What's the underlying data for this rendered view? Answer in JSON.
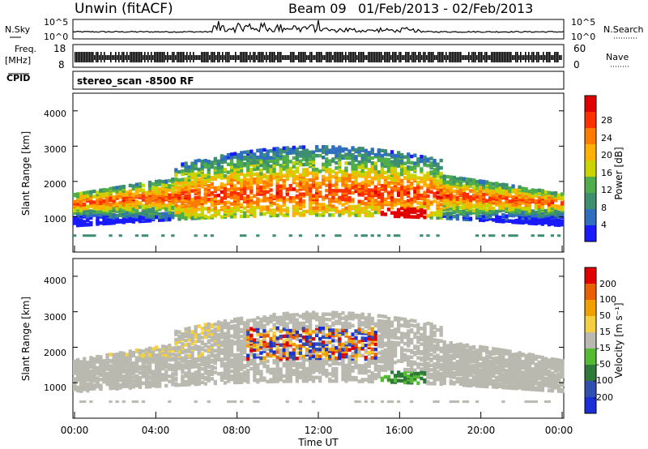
{
  "header": {
    "title": "Unwin (fitACF)",
    "beam": "Beam 09",
    "date_range": "01/Feb/2013 - 02/Feb/2013"
  },
  "strips": {
    "nsky_label": "N.Sky",
    "nsearch_label": "N.Search",
    "nsky_ticks": [
      "10^5",
      "10^0"
    ],
    "nsearch_ticks": [
      "10^5",
      "10^0"
    ],
    "freq_label_1": "Freq.",
    "freq_label_2": "[MHz]",
    "freq_ticks": [
      "18",
      "8"
    ],
    "nave_label": "Nave",
    "nave_ticks": [
      "60",
      "0"
    ],
    "cpid_label": "CPID",
    "cpid_value": "stereo_scan -8500 RF"
  },
  "chart_data": [
    {
      "type": "heatmap",
      "name": "power",
      "ylabel": "Slant Range [km]",
      "ylim": [
        0,
        4500
      ],
      "yticks": [
        "1000",
        "2000",
        "3000",
        "4000"
      ],
      "xlabel": "",
      "colorbar_label": "Power [dB]",
      "colorbar_ticks": [
        "4",
        "8",
        "12",
        "16",
        "20",
        "24",
        "28"
      ],
      "colorscale": [
        "#1a1aff",
        "#2f6fbe",
        "#3d8f6f",
        "#4fae4a",
        "#c9d400",
        "#ffb000",
        "#ff7a00",
        "#ff3000",
        "#e00000"
      ]
    },
    {
      "type": "heatmap",
      "name": "velocity",
      "ylabel": "Slant Range [km]",
      "ylim": [
        0,
        4500
      ],
      "yticks": [
        "1000",
        "2000",
        "3000",
        "4000"
      ],
      "xlabel": "Time UT",
      "xticks": [
        "00:00",
        "04:00",
        "08:00",
        "12:00",
        "16:00",
        "20:00",
        "00:00"
      ],
      "colorbar_label": "Velocity [m s⁻¹]",
      "colorbar_ticks": [
        "200",
        "100",
        "50",
        "15",
        "-15",
        "-50",
        "-100",
        "-200"
      ],
      "colorscale": [
        "#1a2fd8",
        "#2f50b0",
        "#2e7a3a",
        "#55bb33",
        "#b9b9b0",
        "#f4d040",
        "#f0a000",
        "#e86000",
        "#e00000"
      ]
    }
  ]
}
